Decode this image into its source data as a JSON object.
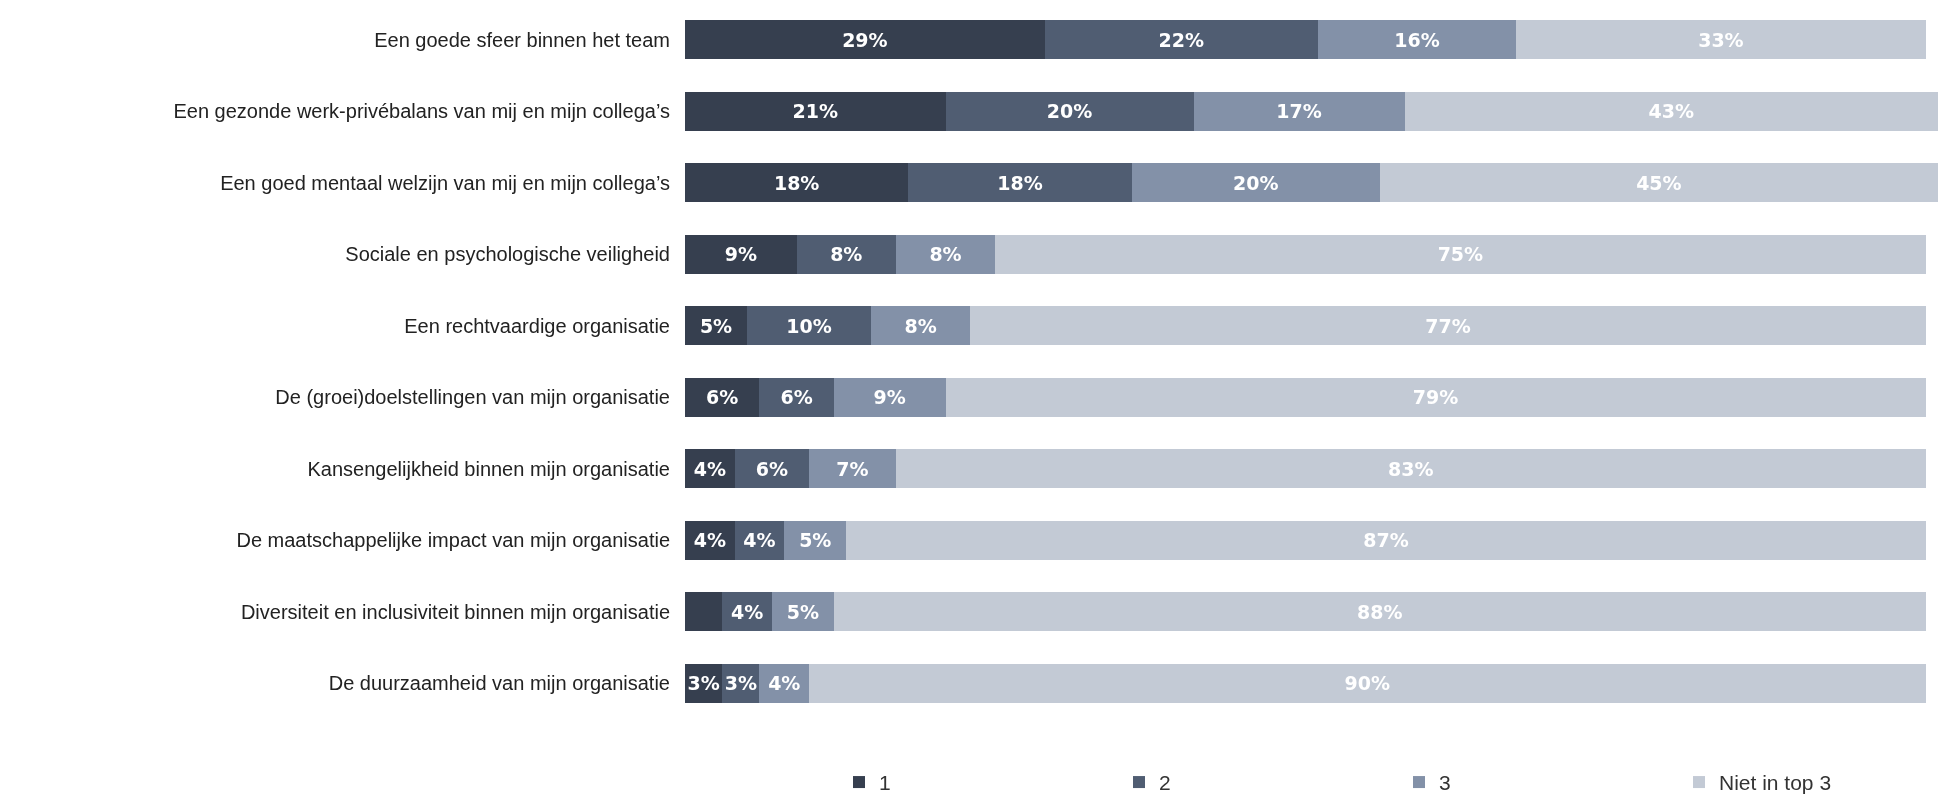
{
  "chart_data": {
    "type": "bar",
    "orientation": "horizontal",
    "stacked": true,
    "categories": [
      "Een goede sfeer binnen het team",
      "Een gezonde werk-privébalans van mij en mijn collega’s",
      "Een goed mentaal welzijn van mij en mijn collega’s",
      "Sociale en psychologische veiligheid",
      "Een rechtvaardige organisatie",
      "De (groei)doelstellingen van mijn organisatie",
      "Kansengelijkheid binnen mijn organisatie",
      "De maatschappelijke impact van mijn organisatie",
      "Diversiteit en inclusiviteit binnen mijn organisatie",
      "De duurzaamheid van mijn organisatie"
    ],
    "series": [
      {
        "name": "1",
        "color": "#363f4f",
        "values": [
          29,
          21,
          18,
          9,
          5,
          6,
          4,
          4,
          3,
          3
        ],
        "value_labels": [
          "29%",
          "21%",
          "18%",
          "9%",
          "5%",
          "6%",
          "4%",
          "4%",
          null,
          "3%"
        ]
      },
      {
        "name": "2",
        "color": "#505d72",
        "values": [
          22,
          20,
          18,
          8,
          10,
          6,
          6,
          4,
          4,
          3
        ],
        "value_labels": [
          "22%",
          "20%",
          "18%",
          "8%",
          "10%",
          "6%",
          "6%",
          "4%",
          "4%",
          "3%"
        ]
      },
      {
        "name": "3",
        "color": "#8391a8",
        "values": [
          16,
          17,
          20,
          8,
          8,
          9,
          7,
          5,
          5,
          4
        ],
        "value_labels": [
          "16%",
          "17%",
          "20%",
          "8%",
          "8%",
          "9%",
          "7%",
          "5%",
          "5%",
          "4%"
        ]
      },
      {
        "name": "Niet in top 3",
        "color": "#c3cad5",
        "values": [
          33,
          43,
          45,
          75,
          77,
          79,
          83,
          87,
          88,
          90
        ],
        "value_labels": [
          "33%",
          "43%",
          "45%",
          "75%",
          "77%",
          "79%",
          "83%",
          "87%",
          "88%",
          "90%"
        ]
      }
    ],
    "xlim": [
      0,
      101
    ],
    "tick_labels": "y",
    "legend": "bottom"
  }
}
